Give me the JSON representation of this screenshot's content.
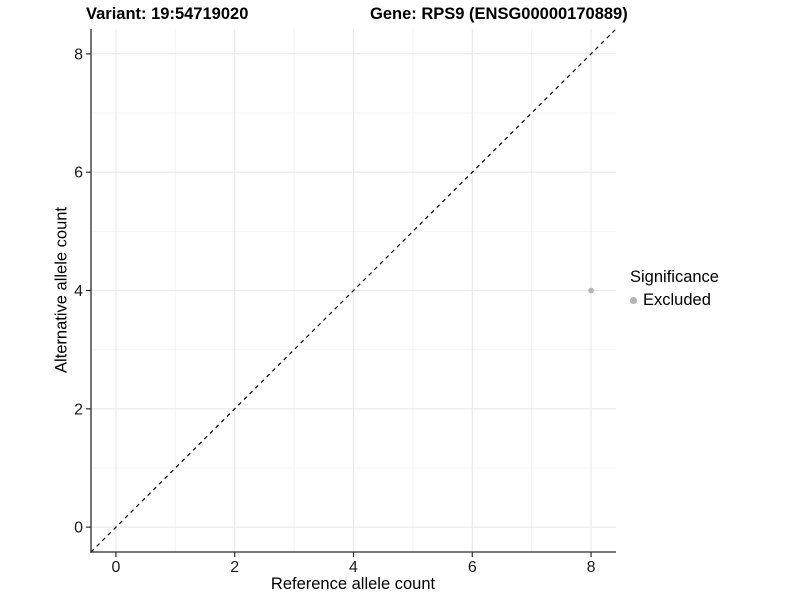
{
  "chart_data": {
    "type": "scatter",
    "title_left": "Variant: 19:54719020",
    "title_right": "Gene: RPS9 (ENSG00000170889)",
    "xlabel": "Reference allele count",
    "ylabel": "Alternative allele count",
    "xlim": [
      -0.42,
      8.42
    ],
    "ylim": [
      -0.42,
      8.42
    ],
    "xticks": [
      0,
      2,
      4,
      6,
      8
    ],
    "yticks": [
      0,
      2,
      4,
      6,
      8
    ],
    "xminor": [
      1,
      3,
      5,
      7
    ],
    "yminor": [
      1,
      3,
      5,
      7
    ],
    "grid": true,
    "identity_line": {
      "style": "dashed",
      "from": [
        -0.42,
        -0.42
      ],
      "to": [
        8.42,
        8.42
      ],
      "color": "#000000"
    },
    "series": [
      {
        "name": "Excluded",
        "color": "#b3b3b3",
        "points": [
          {
            "x": 8,
            "y": 4
          }
        ]
      }
    ],
    "legend": {
      "position": "right",
      "title": "Significance",
      "entries": [
        {
          "label": "Excluded",
          "color": "#b3b3b3"
        }
      ]
    },
    "colors": {
      "background": "#ffffff",
      "grid_major": "#e8e8e8",
      "grid_minor": "#f3f3f3",
      "axis": "#2b2b2b",
      "tick_label": "#1a1a1a",
      "point": "#b3b3b3"
    }
  }
}
